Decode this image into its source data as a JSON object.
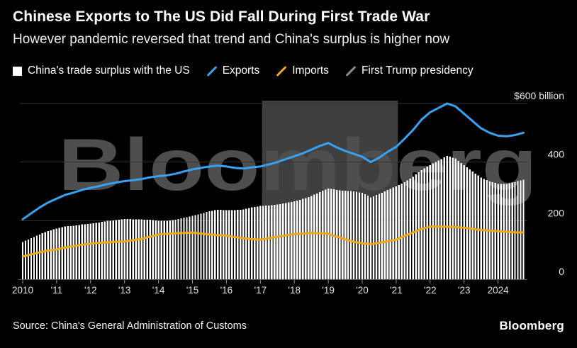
{
  "header": {
    "title": "Chinese Exports to The US Did Fall During First Trade War",
    "subtitle": "However pandemic reversed that trend and China's surplus is higher now"
  },
  "legend": {
    "items": [
      {
        "label": "China's trade surplus with the US",
        "swatch": "square",
        "color": "#ffffff"
      },
      {
        "label": "Exports",
        "swatch": "slash",
        "color": "#38a1f2"
      },
      {
        "label": "Imports",
        "swatch": "slash",
        "color": "#f3a712"
      },
      {
        "label": "First Trump presidency",
        "swatch": "slash",
        "color": "#8c8c8c"
      }
    ]
  },
  "footer": {
    "source": "Source: China's General Administration of Customs",
    "brand": "Bloomberg"
  },
  "watermark": "Bloomberg",
  "colors": {
    "background": "#000000",
    "exports": "#38a1f2",
    "imports": "#f3a712",
    "bars": "#ffffff",
    "trump_region": "#3f3f3f",
    "watermark": "#4e4e4e",
    "gridline": "#333333",
    "axis_label": "#e0e0e0"
  },
  "chart_data": {
    "type": "bar",
    "subtype": "combo-bar-line",
    "unit": "$ billion",
    "title": "Chinese Exports to The US Did Fall During First Trade War",
    "xlabel": "",
    "ylabel": "$ billion",
    "ylim": [
      0,
      620
    ],
    "xlim": [
      2009.9,
      2024.95
    ],
    "grid": true,
    "legend_position": "top",
    "x": [
      2010,
      2010.25,
      2010.5,
      2010.75,
      2011,
      2011.25,
      2011.5,
      2011.75,
      2012,
      2012.25,
      2012.5,
      2012.75,
      2013,
      2013.25,
      2013.5,
      2013.75,
      2014,
      2014.25,
      2014.5,
      2014.75,
      2015,
      2015.25,
      2015.5,
      2015.75,
      2016,
      2016.25,
      2016.5,
      2016.75,
      2017,
      2017.25,
      2017.5,
      2017.75,
      2018,
      2018.25,
      2018.5,
      2018.75,
      2019,
      2019.25,
      2019.5,
      2019.75,
      2020,
      2020.25,
      2020.5,
      2020.75,
      2021,
      2021.25,
      2021.5,
      2021.75,
      2022,
      2022.25,
      2022.5,
      2022.75,
      2023,
      2023.25,
      2023.5,
      2023.75,
      2024,
      2024.25,
      2024.5,
      2024.75
    ],
    "series": [
      {
        "name": "China's trade surplus with the US",
        "type": "bar",
        "color": "#ffffff",
        "values": [
          127,
          140,
          153,
          164,
          173,
          180,
          183,
          187,
          190,
          194,
          199,
          202,
          206,
          205,
          204,
          203,
          199,
          200,
          203,
          210,
          216,
          224,
          232,
          237,
          236,
          236,
          238,
          245,
          250,
          252,
          255,
          260,
          266,
          274,
          284,
          298,
          310,
          305,
          302,
          300,
          295,
          280,
          291,
          305,
          317,
          332,
          350,
          373,
          390,
          405,
          421,
          412,
          389,
          368,
          347,
          334,
          326,
          326,
          332,
          340
        ]
      },
      {
        "name": "Exports",
        "type": "line",
        "color": "#38a1f2",
        "values": [
          205,
          225,
          245,
          262,
          275,
          288,
          296,
          305,
          312,
          318,
          325,
          330,
          335,
          338,
          342,
          348,
          352,
          355,
          360,
          368,
          375,
          380,
          385,
          388,
          385,
          380,
          378,
          382,
          385,
          392,
          400,
          410,
          420,
          430,
          442,
          455,
          465,
          450,
          438,
          428,
          418,
          400,
          415,
          435,
          452,
          480,
          510,
          545,
          570,
          585,
          600,
          590,
          565,
          540,
          515,
          500,
          490,
          488,
          492,
          500
        ]
      },
      {
        "name": "Imports",
        "type": "line",
        "color": "#f3a712",
        "values": [
          78,
          85,
          92,
          98,
          102,
          108,
          113,
          118,
          122,
          124,
          126,
          128,
          129,
          133,
          138,
          145,
          153,
          155,
          157,
          158,
          159,
          156,
          153,
          151,
          149,
          144,
          140,
          137,
          135,
          140,
          145,
          150,
          154,
          156,
          158,
          157,
          155,
          145,
          136,
          128,
          123,
          120,
          124,
          130,
          135,
          148,
          160,
          172,
          180,
          180,
          179,
          178,
          176,
          172,
          168,
          166,
          164,
          162,
          160,
          160
        ]
      }
    ],
    "annotations": [
      {
        "label": "First Trump presidency",
        "type": "region",
        "x_start": 2017.05,
        "x_end": 2021.05
      }
    ],
    "y_ticks": [
      {
        "value": 600,
        "label": "$600 billion"
      },
      {
        "value": 400,
        "label": "400"
      },
      {
        "value": 200,
        "label": "200"
      },
      {
        "value": 0,
        "label": "0"
      }
    ],
    "x_ticks": [
      {
        "value": 2010,
        "label": "2010"
      },
      {
        "value": 2011,
        "label": "'11"
      },
      {
        "value": 2012,
        "label": "'12"
      },
      {
        "value": 2013,
        "label": "'13"
      },
      {
        "value": 2014,
        "label": "'14"
      },
      {
        "value": 2015,
        "label": "'15"
      },
      {
        "value": 2016,
        "label": "'16"
      },
      {
        "value": 2017,
        "label": "'17"
      },
      {
        "value": 2018,
        "label": "'18"
      },
      {
        "value": 2019,
        "label": "'19"
      },
      {
        "value": 2020,
        "label": "'20"
      },
      {
        "value": 2021,
        "label": "'21"
      },
      {
        "value": 2022,
        "label": "'22"
      },
      {
        "value": 2023,
        "label": "'23"
      },
      {
        "value": 2024,
        "label": "2024"
      }
    ]
  }
}
